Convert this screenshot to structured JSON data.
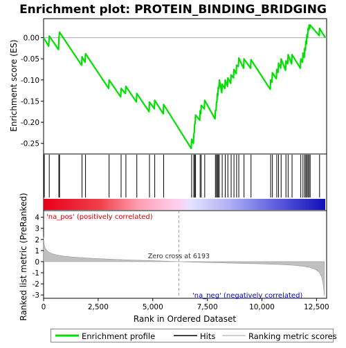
{
  "chart_data": {
    "type": "line",
    "title": "Enrichment plot: PROTEIN_BINDING_BRIDGING",
    "xlabel": "Rank in Ordered Dataset",
    "ylabel_top": "Enrichment score (ES)",
    "ylabel_bottom": "Ranked list metric (PreRanked)",
    "xlim": [
      0,
      12900
    ],
    "x_ticks": [
      0,
      2500,
      5000,
      7500,
      10000,
      12500
    ],
    "x_tick_labels": [
      "0",
      "2,500",
      "5,000",
      "7,500",
      "10,000",
      "12,500"
    ],
    "es_ylim": [
      -0.275,
      0.045
    ],
    "es_y_ticks": [
      0.0,
      -0.05,
      -0.1,
      -0.15,
      -0.2,
      -0.25
    ],
    "es_y_tick_labels": [
      "0.00",
      "-0.05",
      "-0.10",
      "-0.15",
      "-0.20",
      "-0.25"
    ],
    "metric_ylim": [
      -3.3,
      4.6
    ],
    "metric_y_ticks": [
      4,
      3,
      2,
      1,
      0,
      -1,
      -2,
      -3
    ],
    "metric_y_tick_labels": [
      "4",
      "3",
      "2",
      "1",
      "0",
      "-1",
      "-2",
      "-3"
    ],
    "zero_cross_rank": 6193,
    "annotations": {
      "zero_cross": "Zero cross at 6193",
      "pos_label": "'na_pos' (positively correlated)",
      "neg_label": "'na_neg' (negatively correlated)"
    },
    "legend": {
      "enrichment": "Enrichment profile",
      "hits": "Hits",
      "ranking": "Ranking metric scores"
    },
    "hits": [
      30,
      260,
      700,
      730,
      1760,
      1920,
      3000,
      3550,
      3770,
      4270,
      4850,
      5090,
      5500,
      6780,
      6880,
      6920,
      6960,
      7170,
      7220,
      7380,
      7870,
      7920,
      7960,
      8000,
      8050,
      8180,
      8320,
      8440,
      8590,
      8720,
      8840,
      8940,
      9180,
      9500,
      10400,
      10480,
      10680,
      10760,
      10880,
      11100,
      11200,
      11380,
      11780,
      11880,
      11960,
      12010,
      12060,
      12110,
      12160,
      12210,
      12640
    ],
    "es_profile": [
      [
        0,
        0.0
      ],
      [
        230,
        -0.02
      ],
      [
        260,
        0.004
      ],
      [
        680,
        -0.028
      ],
      [
        700,
        -0.003
      ],
      [
        730,
        0.013
      ],
      [
        1740,
        -0.065
      ],
      [
        1760,
        -0.045
      ],
      [
        1900,
        -0.058
      ],
      [
        1920,
        -0.038
      ],
      [
        2980,
        -0.12
      ],
      [
        3000,
        -0.1
      ],
      [
        3530,
        -0.14
      ],
      [
        3550,
        -0.12
      ],
      [
        3750,
        -0.132
      ],
      [
        3770,
        -0.115
      ],
      [
        4250,
        -0.152
      ],
      [
        4270,
        -0.132
      ],
      [
        4830,
        -0.175
      ],
      [
        4850,
        -0.152
      ],
      [
        5070,
        -0.168
      ],
      [
        5090,
        -0.148
      ],
      [
        5480,
        -0.18
      ],
      [
        5500,
        -0.158
      ],
      [
        6760,
        -0.262
      ],
      [
        6780,
        -0.24
      ],
      [
        6860,
        -0.25
      ],
      [
        6880,
        -0.228
      ],
      [
        6900,
        -0.225
      ],
      [
        6920,
        -0.205
      ],
      [
        6940,
        -0.203
      ],
      [
        6960,
        -0.183
      ],
      [
        7150,
        -0.195
      ],
      [
        7170,
        -0.173
      ],
      [
        7200,
        -0.18
      ],
      [
        7220,
        -0.16
      ],
      [
        7360,
        -0.168
      ],
      [
        7380,
        -0.148
      ],
      [
        7850,
        -0.192
      ],
      [
        7870,
        -0.172
      ],
      [
        7900,
        -0.172
      ],
      [
        7920,
        -0.152
      ],
      [
        7940,
        -0.152
      ],
      [
        7960,
        -0.132
      ],
      [
        7980,
        -0.137
      ],
      [
        8000,
        -0.117
      ],
      [
        8030,
        -0.12
      ],
      [
        8050,
        -0.1
      ],
      [
        8160,
        -0.13
      ],
      [
        8180,
        -0.11
      ],
      [
        8300,
        -0.12
      ],
      [
        8320,
        -0.1
      ],
      [
        8420,
        -0.115
      ],
      [
        8440,
        -0.095
      ],
      [
        8570,
        -0.108
      ],
      [
        8590,
        -0.088
      ],
      [
        8700,
        -0.095
      ],
      [
        8720,
        -0.075
      ],
      [
        8820,
        -0.085
      ],
      [
        8840,
        -0.065
      ],
      [
        8920,
        -0.068
      ],
      [
        8940,
        -0.048
      ],
      [
        9160,
        -0.072
      ],
      [
        9180,
        -0.05
      ],
      [
        9480,
        -0.072
      ],
      [
        9500,
        -0.052
      ],
      [
        10380,
        -0.122
      ],
      [
        10400,
        -0.1
      ],
      [
        10460,
        -0.105
      ],
      [
        10480,
        -0.083
      ],
      [
        10660,
        -0.097
      ],
      [
        10680,
        -0.075
      ],
      [
        10740,
        -0.082
      ],
      [
        10760,
        -0.06
      ],
      [
        10860,
        -0.072
      ],
      [
        10880,
        -0.05
      ],
      [
        11080,
        -0.077
      ],
      [
        11100,
        -0.055
      ],
      [
        11180,
        -0.062
      ],
      [
        11200,
        -0.04
      ],
      [
        11360,
        -0.062
      ],
      [
        11380,
        -0.04
      ],
      [
        11760,
        -0.072
      ],
      [
        11780,
        -0.05
      ],
      [
        11860,
        -0.058
      ],
      [
        11880,
        -0.036
      ],
      [
        11940,
        -0.047
      ],
      [
        11960,
        -0.025
      ],
      [
        11990,
        -0.03
      ],
      [
        12010,
        -0.008
      ],
      [
        12040,
        -0.015
      ],
      [
        12060,
        0.007
      ],
      [
        12090,
        0.0
      ],
      [
        12110,
        0.022
      ],
      [
        12140,
        0.018
      ],
      [
        12160,
        0.03
      ],
      [
        12190,
        0.022
      ],
      [
        12210,
        0.03
      ],
      [
        12620,
        0.005
      ],
      [
        12640,
        0.022
      ],
      [
        12900,
        0.0
      ]
    ],
    "metric_profile": [
      [
        0,
        2.2
      ],
      [
        25,
        1.6
      ],
      [
        60,
        1.3
      ],
      [
        120,
        1.08
      ],
      [
        200,
        0.92
      ],
      [
        300,
        0.8
      ],
      [
        450,
        0.68
      ],
      [
        650,
        0.58
      ],
      [
        900,
        0.5
      ],
      [
        1300,
        0.42
      ],
      [
        1800,
        0.35
      ],
      [
        2500,
        0.27
      ],
      [
        3200,
        0.21
      ],
      [
        4000,
        0.15
      ],
      [
        4800,
        0.1
      ],
      [
        5500,
        0.05
      ],
      [
        6193,
        0.0
      ],
      [
        7000,
        -0.05
      ],
      [
        8000,
        -0.1
      ],
      [
        9000,
        -0.15
      ],
      [
        10000,
        -0.2
      ],
      [
        10800,
        -0.26
      ],
      [
        11400,
        -0.32
      ],
      [
        11900,
        -0.42
      ],
      [
        12200,
        -0.52
      ],
      [
        12450,
        -0.7
      ],
      [
        12620,
        -0.95
      ],
      [
        12720,
        -1.3
      ],
      [
        12790,
        -1.8
      ],
      [
        12830,
        -2.4
      ],
      [
        12860,
        -3.1
      ]
    ]
  }
}
